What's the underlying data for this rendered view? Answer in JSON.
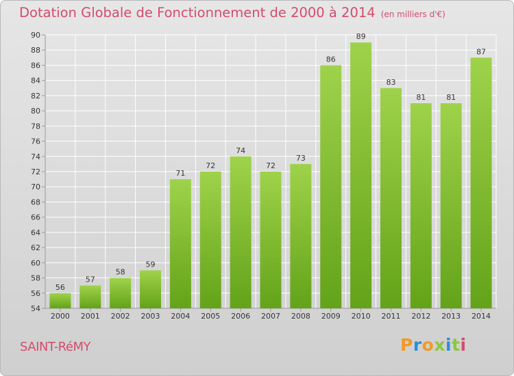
{
  "title": "Dotation Globale de Fonctionnement de 2000 à 2014",
  "subtitle": "(en milliers d'€)",
  "commune": "SAINT-RéMY",
  "logo_text": "Proxiti",
  "colors": {
    "title": "#d34c6c",
    "bar_top": "#9fd24b",
    "bar_bottom": "#63a319",
    "logo_letters": [
      "#f29a26",
      "#2b8fd6",
      "#f29a26",
      "#8dc63f",
      "#2b8fd6",
      "#8dc63f",
      "#d34c6c"
    ]
  },
  "chart_data": {
    "type": "bar",
    "categories": [
      "2000",
      "2001",
      "2002",
      "2003",
      "2004",
      "2005",
      "2006",
      "2007",
      "2008",
      "2009",
      "2010",
      "2011",
      "2012",
      "2013",
      "2014"
    ],
    "values": [
      56,
      57,
      58,
      59,
      71,
      72,
      74,
      72,
      73,
      86,
      89,
      83,
      81,
      81,
      87
    ],
    "title": "Dotation Globale de Fonctionnement de 2000 à 2014",
    "subtitle": "(en milliers d'€)",
    "ylim": [
      54,
      90
    ],
    "yticks": [
      54,
      56,
      58,
      60,
      62,
      64,
      66,
      68,
      70,
      72,
      74,
      76,
      78,
      80,
      82,
      84,
      86,
      88,
      90
    ],
    "grid": true,
    "data_labels": true
  }
}
